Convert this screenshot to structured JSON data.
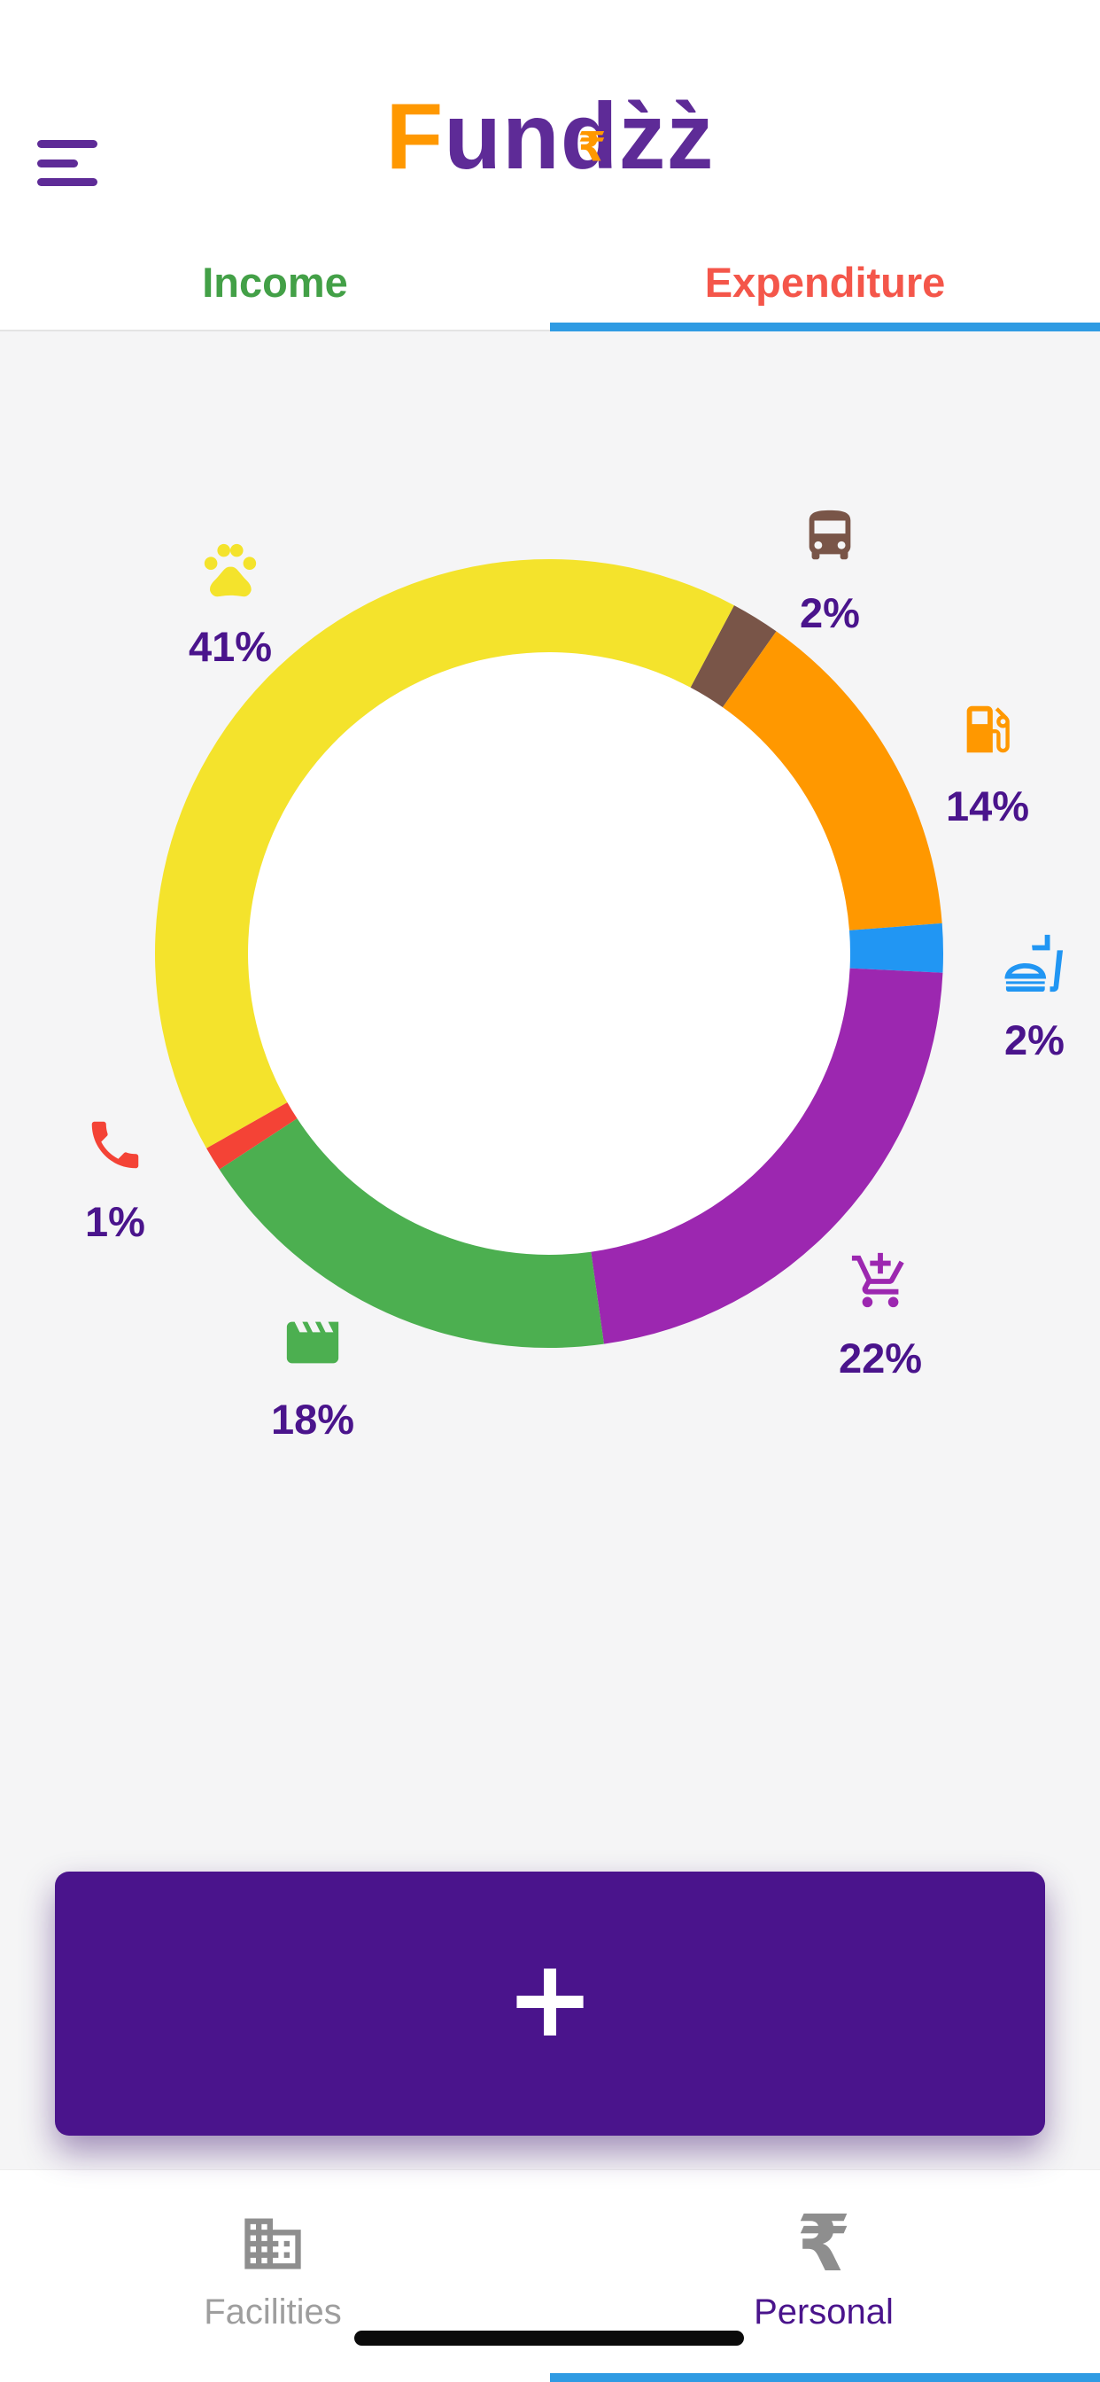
{
  "header": {
    "menu_color": "#5E2B97",
    "logo": {
      "part_f": "F",
      "part_un": "un",
      "part_d": "d",
      "rupee": "₹",
      "part_zz": "z̀z̀",
      "color_accent": "#FF9800",
      "color_main": "#5E2B97"
    },
    "tabs": [
      {
        "label": "Income",
        "color": "#43A047",
        "active": false
      },
      {
        "label": "Expenditure",
        "color": "#F4564A",
        "active": true
      }
    ],
    "active_tab_underline_color": "#2F9BE3"
  },
  "chart_data": {
    "type": "pie",
    "subtype": "donut",
    "title": "",
    "units": "percent",
    "start_angle_deg": 28,
    "legend_position": "around",
    "label_color": "#4A148C",
    "donut_center_color": "#FFFFFF",
    "segments": [
      {
        "category": "transport-bus",
        "percent": 2,
        "percent_label": "2%",
        "color": "#795548",
        "icon": "bus-icon"
      },
      {
        "category": "fuel",
        "percent": 14,
        "percent_label": "14%",
        "color": "#FF9800",
        "icon": "fuel-pump-icon"
      },
      {
        "category": "food",
        "percent": 2,
        "percent_label": "2%",
        "color": "#2196F3",
        "icon": "fastfood-icon"
      },
      {
        "category": "shopping",
        "percent": 22,
        "percent_label": "22%",
        "color": "#9C27B0",
        "icon": "add-cart-icon"
      },
      {
        "category": "entertainment",
        "percent": 18,
        "percent_label": "18%",
        "color": "#4CAF50",
        "icon": "movie-clapper-icon"
      },
      {
        "category": "calls",
        "percent": 1,
        "percent_label": "1%",
        "color": "#F44336",
        "icon": "phone-icon"
      },
      {
        "category": "pets",
        "percent": 41,
        "percent_label": "41%",
        "color": "#F4E32C",
        "icon": "paw-icon"
      }
    ]
  },
  "fab": {
    "label": "+",
    "color": "#4A148C"
  },
  "bottom_nav": {
    "rupee_glyph": "₹",
    "active_underline_color": "#2F9BE3",
    "items": [
      {
        "label": "Facilities",
        "icon": "building-icon",
        "active": false,
        "label_color": "#9E9E9E"
      },
      {
        "label": "Personal",
        "icon": "rupee-icon",
        "active": true,
        "label_color": "#4A148C"
      }
    ]
  }
}
